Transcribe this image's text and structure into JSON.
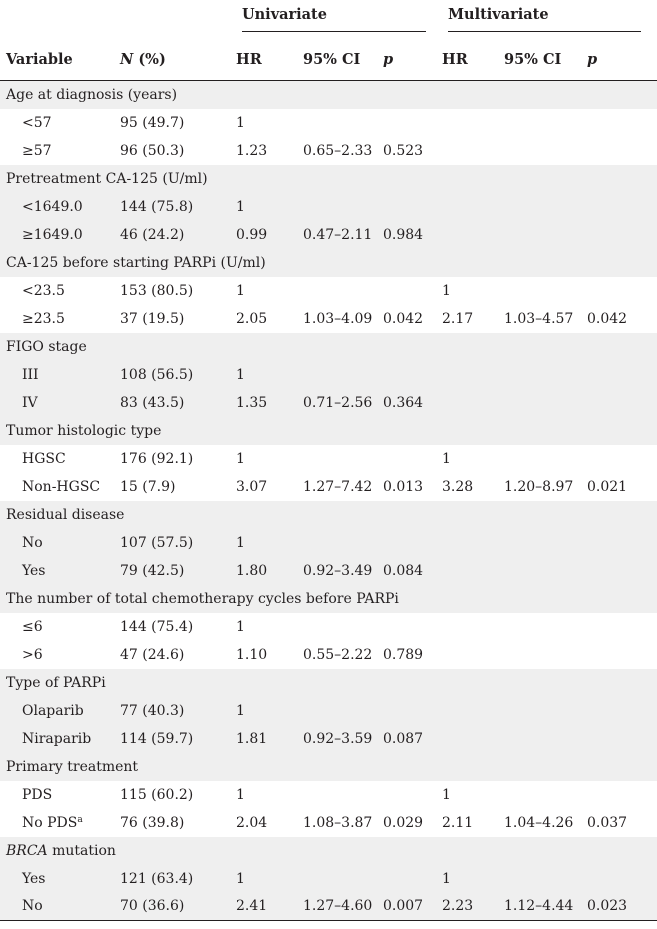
{
  "header": {
    "univariate": "Univariate",
    "multivariate": "Multivariate",
    "col_variable": "Variable",
    "col_n": "N",
    "col_n_suffix": " (%)",
    "col_hr": "HR",
    "col_ci": "95% CI",
    "col_p": "p",
    "col_hr2": "HR",
    "col_ci2": "95% CI",
    "col_p2": "p"
  },
  "sections": [
    {
      "title": "Age at diagnosis (years)",
      "rows": [
        {
          "label": "<57",
          "n": "95 (49.7)",
          "hr": "1",
          "ci": "",
          "p": "",
          "mhr": "",
          "mci": "",
          "mp": ""
        },
        {
          "label": "≥57",
          "n": "96 (50.3)",
          "hr": "1.23",
          "ci": "0.65–2.33",
          "p": "0.523",
          "mhr": "",
          "mci": "",
          "mp": ""
        }
      ]
    },
    {
      "title": "Pretreatment CA-125 (U/ml)",
      "rows": [
        {
          "label": "<1649.0",
          "n": "144 (75.8)",
          "hr": "1",
          "ci": "",
          "p": "",
          "mhr": "",
          "mci": "",
          "mp": ""
        },
        {
          "label": "≥1649.0",
          "n": "46 (24.2)",
          "hr": "0.99",
          "ci": "0.47–2.11",
          "p": "0.984",
          "mhr": "",
          "mci": "",
          "mp": ""
        }
      ]
    },
    {
      "title": "CA-125 before starting PARPi (U/ml)",
      "rows": [
        {
          "label": "<23.5",
          "n": "153 (80.5)",
          "hr": "1",
          "ci": "",
          "p": "",
          "mhr": "1",
          "mci": "",
          "mp": ""
        },
        {
          "label": "≥23.5",
          "n": "37 (19.5)",
          "hr": "2.05",
          "ci": "1.03–4.09",
          "p": "0.042",
          "mhr": "2.17",
          "mci": "1.03–4.57",
          "mp": "0.042"
        }
      ]
    },
    {
      "title": "FIGO stage",
      "rows": [
        {
          "label": "III",
          "n": "108 (56.5)",
          "hr": "1",
          "ci": "",
          "p": "",
          "mhr": "",
          "mci": "",
          "mp": ""
        },
        {
          "label": "IV",
          "n": "83 (43.5)",
          "hr": "1.35",
          "ci": "0.71–2.56",
          "p": "0.364",
          "mhr": "",
          "mci": "",
          "mp": ""
        }
      ]
    },
    {
      "title": "Tumor histologic type",
      "rows": [
        {
          "label": "HGSC",
          "n": "176 (92.1)",
          "hr": "1",
          "ci": "",
          "p": "",
          "mhr": "1",
          "mci": "",
          "mp": ""
        },
        {
          "label": "Non-HGSC",
          "n": "15 (7.9)",
          "hr": "3.07",
          "ci": "1.27–7.42",
          "p": "0.013",
          "mhr": "3.28",
          "mci": "1.20–8.97",
          "mp": "0.021"
        }
      ]
    },
    {
      "title": "Residual disease",
      "rows": [
        {
          "label": "No",
          "n": "107 (57.5)",
          "hr": "1",
          "ci": "",
          "p": "",
          "mhr": "",
          "mci": "",
          "mp": ""
        },
        {
          "label": "Yes",
          "n": "79 (42.5)",
          "hr": "1.80",
          "ci": "0.92–3.49",
          "p": "0.084",
          "mhr": "",
          "mci": "",
          "mp": ""
        }
      ]
    },
    {
      "title": "The number of total chemotherapy cycles before PARPi",
      "rows": [
        {
          "label": "≤6",
          "n": "144 (75.4)",
          "hr": "1",
          "ci": "",
          "p": "",
          "mhr": "",
          "mci": "",
          "mp": ""
        },
        {
          "label": ">6",
          "n": "47 (24.6)",
          "hr": "1.10",
          "ci": "0.55–2.22",
          "p": "0.789",
          "mhr": "",
          "mci": "",
          "mp": ""
        }
      ]
    },
    {
      "title": "Type of PARPi",
      "rows": [
        {
          "label": "Olaparib",
          "n": "77 (40.3)",
          "hr": "1",
          "ci": "",
          "p": "",
          "mhr": "",
          "mci": "",
          "mp": ""
        },
        {
          "label": "Niraparib",
          "n": "114 (59.7)",
          "hr": "1.81",
          "ci": "0.92–3.59",
          "p": "0.087",
          "mhr": "",
          "mci": "",
          "mp": ""
        }
      ]
    },
    {
      "title": "Primary treatment",
      "rows": [
        {
          "label": "PDS",
          "n": "115 (60.2)",
          "hr": "1",
          "ci": "",
          "p": "",
          "mhr": "1",
          "mci": "",
          "mp": ""
        },
        {
          "label": "No PDS",
          "sup": "a",
          "n": "76 (39.8)",
          "hr": "2.04",
          "ci": "1.08–3.87",
          "p": "0.029",
          "mhr": "2.11",
          "mci": "1.04–4.26",
          "mp": "0.037"
        }
      ]
    },
    {
      "title": "BRCA",
      "title_rest": " mutation",
      "title_italic": true,
      "rows": [
        {
          "label": "Yes",
          "n": "121 (63.4)",
          "hr": "1",
          "ci": "",
          "p": "",
          "mhr": "1",
          "mci": "",
          "mp": ""
        },
        {
          "label": "No",
          "n": "70 (36.6)",
          "hr": "2.41",
          "ci": "1.27–4.60",
          "p": "0.007",
          "mhr": "2.23",
          "mci": "1.12–4.44",
          "mp": "0.023"
        }
      ]
    }
  ]
}
